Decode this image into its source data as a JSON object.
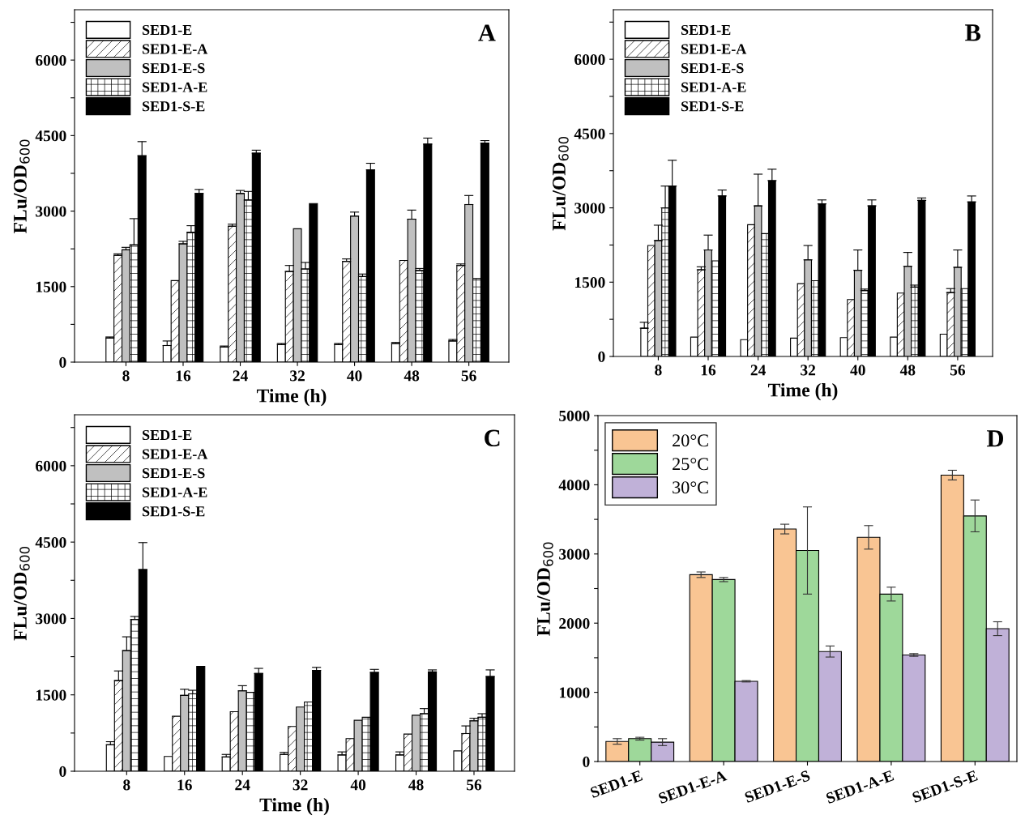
{
  "chart_data": [
    {
      "type": "bar",
      "title": "A",
      "xlabel": "Time (h)",
      "ylabel": "FLu/OD$_{600}$",
      "categories": [
        "8",
        "16",
        "24",
        "32",
        "40",
        "48",
        "56"
      ],
      "ylim": [
        0,
        7000
      ],
      "yticks": [
        0,
        {
          "value": 750,
          "label": null
        },
        1500,
        {
          "value": 2250,
          "label": null
        },
        3000,
        {
          "value": 3750,
          "label": null
        },
        4500,
        {
          "value": 5250,
          "label": null
        },
        6000,
        {
          "value": 6750,
          "label": null
        }
      ],
      "legend": "top left",
      "series": [
        {
          "name": "SED1-E",
          "color": "#ffffff",
          "values": [
            480,
            330,
            300,
            350,
            350,
            370,
            420
          ],
          "errors": [
            [
              480,
              500
            ],
            [
              330,
              420
            ],
            [
              300,
              320
            ],
            [
              350,
              370
            ],
            [
              350,
              370
            ],
            [
              370,
              390
            ],
            [
              420,
              450
            ]
          ]
        },
        {
          "name": "SED1-E-A",
          "color": "#ffffff",
          "values": [
            2120,
            1620,
            2700,
            1800,
            2000,
            2020,
            1920
          ],
          "errors": [
            [
              2120,
              2150
            ],
            null,
            [
              2700,
              2740
            ],
            [
              1800,
              1920
            ],
            [
              2000,
              2050
            ],
            null,
            [
              1920,
              1950
            ]
          ]
        },
        {
          "name": "SED1-E-S",
          "color": "#c0c0c0",
          "values": [
            2230,
            2350,
            3350,
            2650,
            2900,
            2840,
            3130
          ],
          "errors": [
            [
              2230,
              2280
            ],
            [
              2350,
              2400
            ],
            [
              3350,
              3410
            ],
            null,
            [
              2900,
              2980
            ],
            [
              2840,
              3020
            ],
            [
              3130,
              3310
            ]
          ]
        },
        {
          "name": "SED1-A-E",
          "color": "#ffffff",
          "values": [
            2330,
            2580,
            3220,
            1850,
            1700,
            1820,
            1660
          ],
          "errors": [
            [
              2330,
              2850
            ],
            [
              2580,
              2710
            ],
            [
              3220,
              3390
            ],
            [
              1850,
              1980
            ],
            [
              1700,
              1750
            ],
            [
              1820,
              1860
            ],
            null
          ]
        },
        {
          "name": "SED1-S-E",
          "color": "#000000",
          "values": [
            4100,
            3350,
            4150,
            3150,
            3820,
            4330,
            4350
          ],
          "errors": [
            [
              4100,
              4380
            ],
            [
              3350,
              3430
            ],
            [
              4150,
              4210
            ],
            null,
            [
              3820,
              3950
            ],
            [
              4330,
              4450
            ],
            [
              4350,
              4400
            ]
          ]
        }
      ]
    },
    {
      "type": "bar",
      "title": "B",
      "xlabel": "Time (h)",
      "ylabel": "FLu/OD$_{600}$",
      "categories": [
        "8",
        "16",
        "24",
        "32",
        "40",
        "48",
        "56"
      ],
      "ylim": [
        0,
        7000
      ],
      "yticks": [
        0,
        {
          "value": 750,
          "label": null
        },
        1500,
        {
          "value": 2250,
          "label": null
        },
        3000,
        {
          "value": 3750,
          "label": null
        },
        4500,
        {
          "value": 5250,
          "label": null
        },
        6000,
        {
          "value": 6750,
          "label": null
        }
      ],
      "legend": "top left",
      "series": [
        {
          "name": "SED1-E",
          "color": "#ffffff",
          "values": [
            570,
            390,
            340,
            370,
            380,
            390,
            450
          ],
          "errors": [
            [
              570,
              690
            ],
            null,
            null,
            null,
            null,
            null,
            null
          ]
        },
        {
          "name": "SED1-E-A",
          "color": "#ffffff",
          "values": [
            2240,
            1750,
            2660,
            1470,
            1150,
            1280,
            1290
          ],
          "errors": [
            null,
            [
              1750,
              1810
            ],
            null,
            null,
            null,
            null,
            [
              1290,
              1370
            ]
          ]
        },
        {
          "name": "SED1-E-S",
          "color": "#c0c0c0",
          "values": [
            2340,
            2150,
            3040,
            1950,
            1740,
            1820,
            1800
          ],
          "errors": [
            [
              2340,
              2650
            ],
            [
              2150,
              2450
            ],
            [
              3040,
              3680
            ],
            [
              1950,
              2240
            ],
            [
              1740,
              2150
            ],
            [
              1820,
              2100
            ],
            [
              1800,
              2150
            ]
          ]
        },
        {
          "name": "SED1-A-E",
          "color": "#ffffff",
          "values": [
            3000,
            1930,
            2480,
            1530,
            1330,
            1400,
            1370
          ],
          "errors": [
            [
              3000,
              3440
            ],
            null,
            null,
            null,
            [
              1330,
              1360
            ],
            [
              1400,
              1440
            ],
            null
          ]
        },
        {
          "name": "SED1-S-E",
          "color": "#000000",
          "values": [
            3440,
            3240,
            3550,
            3080,
            3040,
            3150,
            3120
          ],
          "errors": [
            [
              3440,
              3960
            ],
            [
              3240,
              3360
            ],
            [
              3550,
              3780
            ],
            [
              3080,
              3160
            ],
            [
              3040,
              3160
            ],
            [
              3150,
              3200
            ],
            [
              3120,
              3240
            ]
          ]
        }
      ]
    },
    {
      "type": "bar",
      "title": "C",
      "xlabel": "Time (h)",
      "ylabel": "FLu/OD$_{600}$",
      "categories": [
        "8",
        "16",
        "24",
        "32",
        "40",
        "48",
        "56"
      ],
      "ylim": [
        0,
        7000
      ],
      "yticks": [
        0,
        {
          "value": 750,
          "label": null
        },
        1500,
        {
          "value": 2250,
          "label": null
        },
        3000,
        {
          "value": 3750,
          "label": null
        },
        4500,
        {
          "value": 5250,
          "label": null
        },
        6000,
        {
          "value": 6750,
          "label": null
        }
      ],
      "legend": "top left",
      "series": [
        {
          "name": "SED1-E",
          "color": "#ffffff",
          "values": [
            520,
            290,
            280,
            330,
            320,
            320,
            400
          ],
          "errors": [
            [
              520,
              580
            ],
            null,
            [
              280,
              330
            ],
            [
              330,
              370
            ],
            [
              320,
              380
            ],
            [
              320,
              380
            ],
            null
          ]
        },
        {
          "name": "SED1-E-A",
          "color": "#ffffff",
          "values": [
            1780,
            1080,
            1170,
            880,
            640,
            730,
            740
          ],
          "errors": [
            [
              1780,
              1970
            ],
            null,
            null,
            null,
            null,
            null,
            [
              740,
              890
            ]
          ]
        },
        {
          "name": "SED1-E-S",
          "color": "#c0c0c0",
          "values": [
            2370,
            1490,
            1580,
            1260,
            1000,
            1100,
            990
          ],
          "errors": [
            [
              2370,
              2640
            ],
            [
              1490,
              1610
            ],
            [
              1580,
              1680
            ],
            null,
            null,
            null,
            [
              990,
              1040
            ]
          ]
        },
        {
          "name": "SED1-A-E",
          "color": "#ffffff",
          "values": [
            2980,
            1520,
            1550,
            1360,
            1060,
            1130,
            1060
          ],
          "errors": [
            [
              2980,
              3040
            ],
            [
              1520,
              1590
            ],
            null,
            null,
            null,
            [
              1130,
              1230
            ],
            [
              1060,
              1130
            ]
          ]
        },
        {
          "name": "SED1-S-E",
          "color": "#000000",
          "values": [
            3960,
            2060,
            1920,
            1980,
            1940,
            1950,
            1860
          ],
          "errors": [
            [
              3960,
              4490
            ],
            null,
            [
              1920,
              2020
            ],
            [
              1980,
              2040
            ],
            [
              1940,
              2000
            ],
            [
              1950,
              1990
            ],
            [
              1860,
              1990
            ]
          ]
        }
      ]
    },
    {
      "type": "bar",
      "title": "D",
      "ylabel": "FLu/OD$_{600}$",
      "categories": [
        "SED1-E",
        "SED1-E-A",
        "SED1-E-S",
        "SED1-A-E",
        "SED1-S-E"
      ],
      "ylim": [
        0,
        5000
      ],
      "yticks": [
        0,
        {
          "value": 500,
          "label": null
        },
        1000,
        {
          "value": 1500,
          "label": null
        },
        2000,
        {
          "value": 2500,
          "label": null
        },
        3000,
        {
          "value": 3500,
          "label": null
        },
        4000,
        {
          "value": 4500,
          "label": null
        },
        5000
      ],
      "legend": "top left",
      "series": [
        {
          "name": "20°C",
          "color": "#f9c593",
          "values": [
            290,
            2700,
            3360,
            3240,
            4140
          ],
          "errors": [
            40,
            40,
            70,
            170,
            70
          ]
        },
        {
          "name": "25°C",
          "color": "#9ed89a",
          "values": [
            330,
            2630,
            3050,
            2420,
            3550
          ],
          "errors": [
            20,
            30,
            630,
            100,
            230
          ]
        },
        {
          "name": "30°C",
          "color": "#c0b1d8",
          "values": [
            280,
            1160,
            1590,
            1540,
            1920
          ],
          "errors": [
            50,
            10,
            80,
            20,
            100
          ]
        }
      ]
    }
  ]
}
